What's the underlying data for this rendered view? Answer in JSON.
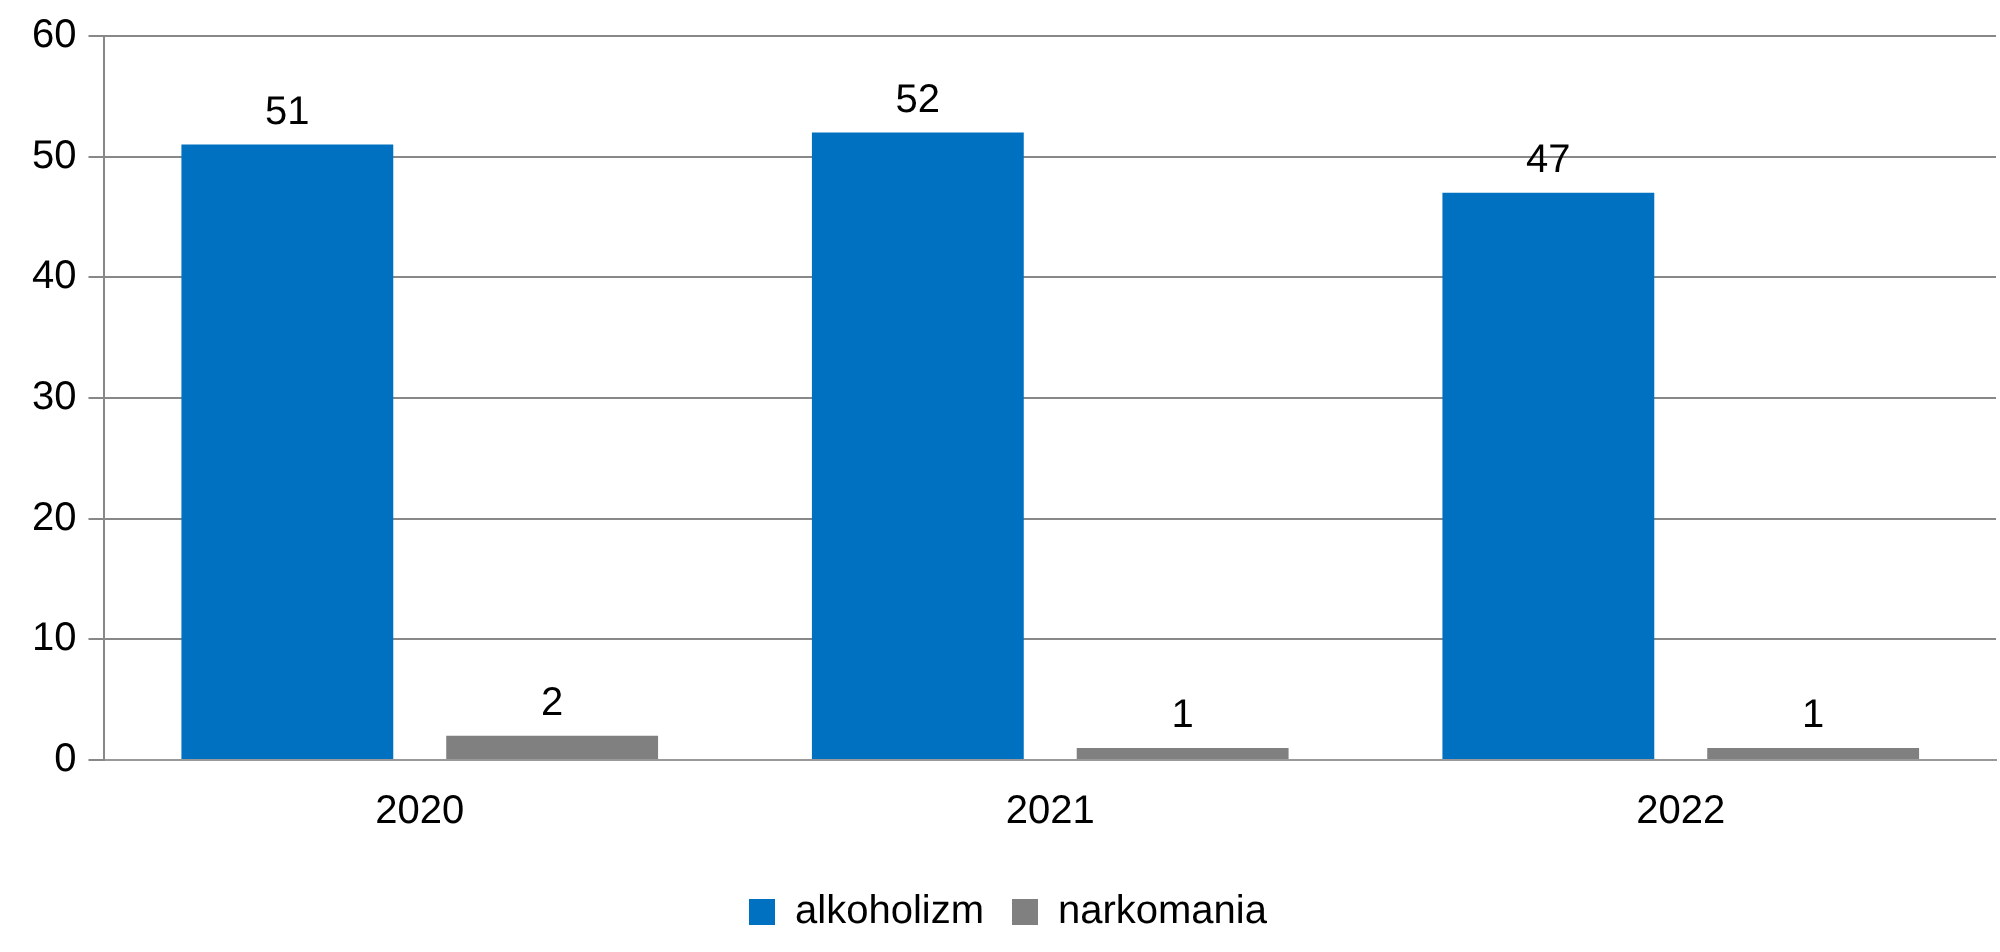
{
  "chart_data": {
    "type": "bar",
    "categories": [
      "2020",
      "2021",
      "2022"
    ],
    "series": [
      {
        "name": "alkoholizm",
        "color": "#0070c0",
        "values": [
          51,
          52,
          47
        ]
      },
      {
        "name": "narkomania",
        "color": "#808080",
        "values": [
          2,
          1,
          1
        ]
      }
    ],
    "ylim": [
      0,
      60
    ],
    "yticks": [
      0,
      10,
      20,
      30,
      40,
      50,
      60
    ],
    "grid": "y",
    "legend": "bottom",
    "data_labels": true
  }
}
